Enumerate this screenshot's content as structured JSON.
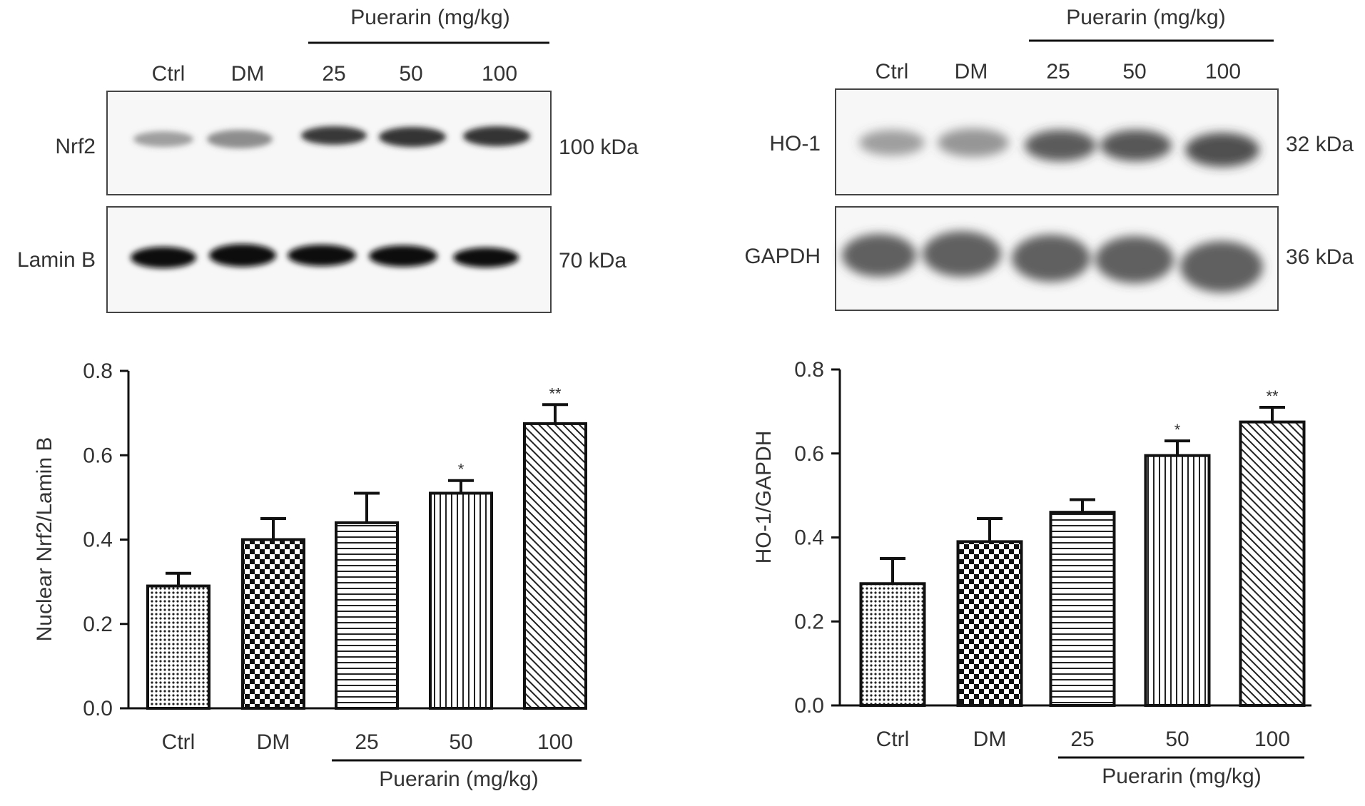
{
  "blot_left": {
    "treatment_label": "Puerarin (mg/kg)",
    "lanes": [
      "Ctrl",
      "DM",
      "25",
      "50",
      "100"
    ],
    "rows": [
      {
        "protein": "Nrf2",
        "size": "100 kDa",
        "intensity": [
          0.45,
          0.55,
          0.8,
          0.85,
          0.85
        ]
      },
      {
        "protein": "Lamin B",
        "size": "70 kDa",
        "intensity": [
          1.0,
          1.0,
          1.0,
          1.0,
          1.0
        ]
      }
    ]
  },
  "blot_right": {
    "treatment_label": "Puerarin (mg/kg)",
    "lanes": [
      "Ctrl",
      "DM",
      "25",
      "50",
      "100"
    ],
    "rows": [
      {
        "protein": "HO-1",
        "size": "32 kDa",
        "intensity": [
          0.45,
          0.5,
          0.7,
          0.75,
          0.8
        ]
      },
      {
        "protein": "GAPDH",
        "size": "36 kDa",
        "intensity": [
          0.75,
          0.75,
          0.75,
          0.75,
          0.75
        ]
      }
    ]
  },
  "chart_data": [
    {
      "type": "bar",
      "title": "",
      "xlabel": "Puerarin (mg/kg)",
      "ylabel": "Nuclear Nrf2/Lamin B",
      "categories": [
        "Ctrl",
        "DM",
        "25",
        "50",
        "100"
      ],
      "values": [
        0.29,
        0.4,
        0.44,
        0.51,
        0.675
      ],
      "errors": [
        0.03,
        0.05,
        0.07,
        0.03,
        0.045
      ],
      "significance": [
        "",
        "",
        "",
        "*",
        "**"
      ],
      "patterns": [
        "dots",
        "checker",
        "hlines",
        "vlines",
        "diagonal"
      ],
      "ylim": [
        0,
        0.8
      ],
      "yticks": [
        "0.0",
        "0.2",
        "0.4",
        "0.6",
        "0.8"
      ]
    },
    {
      "type": "bar",
      "title": "",
      "xlabel": "Puerarin (mg/kg)",
      "ylabel": "HO-1/GAPDH",
      "categories": [
        "Ctrl",
        "DM",
        "25",
        "50",
        "100"
      ],
      "values": [
        0.29,
        0.39,
        0.46,
        0.595,
        0.675
      ],
      "errors": [
        0.06,
        0.055,
        0.03,
        0.035,
        0.035
      ],
      "significance": [
        "",
        "",
        "",
        "*",
        "**"
      ],
      "patterns": [
        "dots",
        "checker",
        "hlines",
        "vlines",
        "diagonal"
      ],
      "ylim": [
        0,
        0.8
      ],
      "yticks": [
        "0.0",
        "0.2",
        "0.4",
        "0.6",
        "0.8"
      ]
    }
  ]
}
